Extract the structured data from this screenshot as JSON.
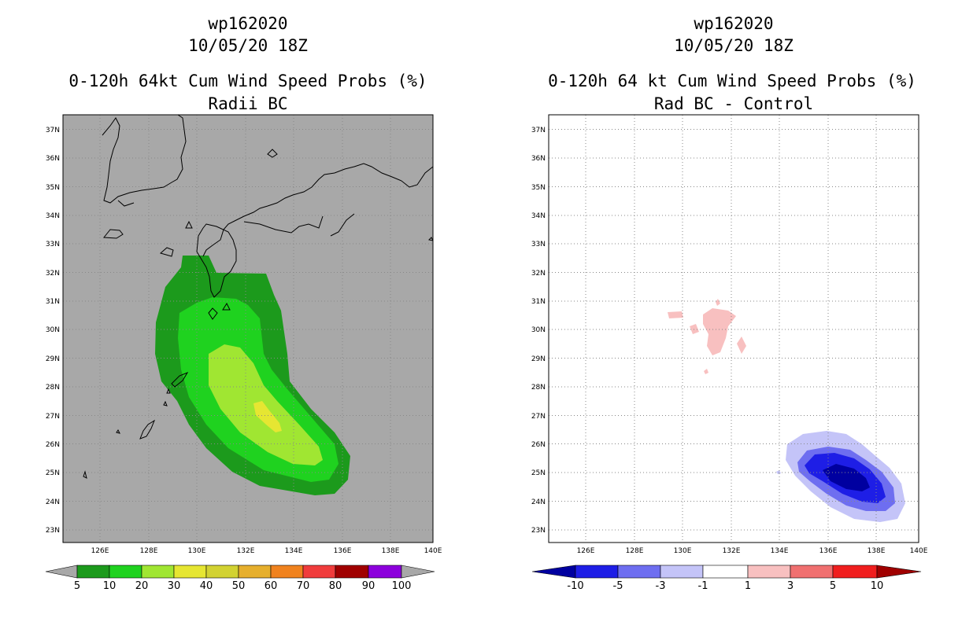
{
  "left_panel": {
    "storm_id": "wp162020",
    "date": "10/05/20 18Z",
    "title": "0-120h 64kt Cum Wind Speed Probs (%)",
    "subtitle": "Radii BC",
    "lat_labels": [
      "37N",
      "36N",
      "35N",
      "34N",
      "33N",
      "32N",
      "31N",
      "30N",
      "29N",
      "28N",
      "27N",
      "26N",
      "25N",
      "24N",
      "23N"
    ],
    "lon_labels": [
      "126E",
      "128E",
      "130E",
      "132E",
      "134E",
      "136E",
      "138E",
      "140E"
    ],
    "colorbar": {
      "labels": [
        "5",
        "10",
        "20",
        "30",
        "40",
        "50",
        "60",
        "70",
        "80",
        "90",
        "100"
      ],
      "colors": [
        "#1c9a1c",
        "#1fd21f",
        "#a0e632",
        "#e6e632",
        "#d2d232",
        "#e6af2d",
        "#f0821e",
        "#f03c3c",
        "#a00000",
        "#8c00dc",
        "#a8a8a8"
      ]
    }
  },
  "right_panel": {
    "storm_id": "wp162020",
    "date": "10/05/20 18Z",
    "title": "0-120h 64 kt Cum Wind Speed Probs (%)",
    "subtitle": "Rad BC - Control",
    "lat_labels": [
      "37N",
      "36N",
      "35N",
      "34N",
      "33N",
      "32N",
      "31N",
      "30N",
      "29N",
      "28N",
      "27N",
      "26N",
      "25N",
      "24N",
      "23N"
    ],
    "lon_labels": [
      "126E",
      "128E",
      "130E",
      "132E",
      "134E",
      "136E",
      "138E",
      "140E"
    ],
    "colorbar": {
      "labels": [
        "-10",
        "-5",
        "-3",
        "-1",
        "1",
        "3",
        "5",
        "10"
      ],
      "colors": [
        "#0000a0",
        "#1e1ee6",
        "#6e6ef0",
        "#c4c4f8",
        "#ffffff",
        "#f8c0c0",
        "#f07070",
        "#f01e1e",
        "#a00000"
      ]
    }
  },
  "map_colors": {
    "background_left": "#a8a8a8",
    "background_right": "#ffffff",
    "grid": "#888888",
    "coast": "#000000"
  }
}
